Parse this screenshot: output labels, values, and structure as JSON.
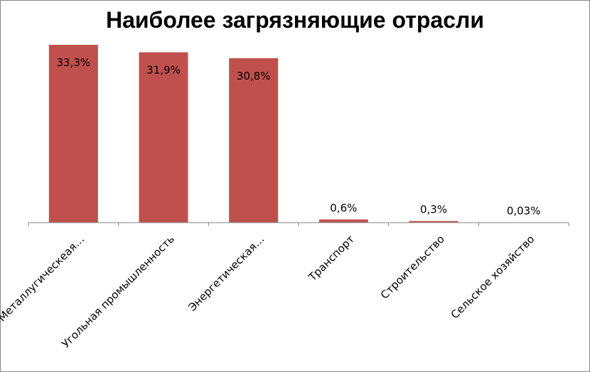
{
  "chart_data": {
    "type": "bar",
    "title": "Наиболее загрязняющие отрасли",
    "categories": [
      "Металлугическеая…",
      "Угольная промышленность",
      "Энергетическая…",
      "Транспорт",
      "Строительство",
      "Сельское хозяйство"
    ],
    "values": [
      33.3,
      31.9,
      30.8,
      0.6,
      0.3,
      0.03
    ],
    "value_labels": [
      "33,3%",
      "31,9%",
      "30,8%",
      "0,6%",
      "0,3%",
      "0,03%"
    ],
    "ylim": [
      0,
      33.3
    ],
    "grid": false,
    "legend": "none",
    "colors": {
      "bar": "#C0504D",
      "axis": "#868686"
    }
  }
}
